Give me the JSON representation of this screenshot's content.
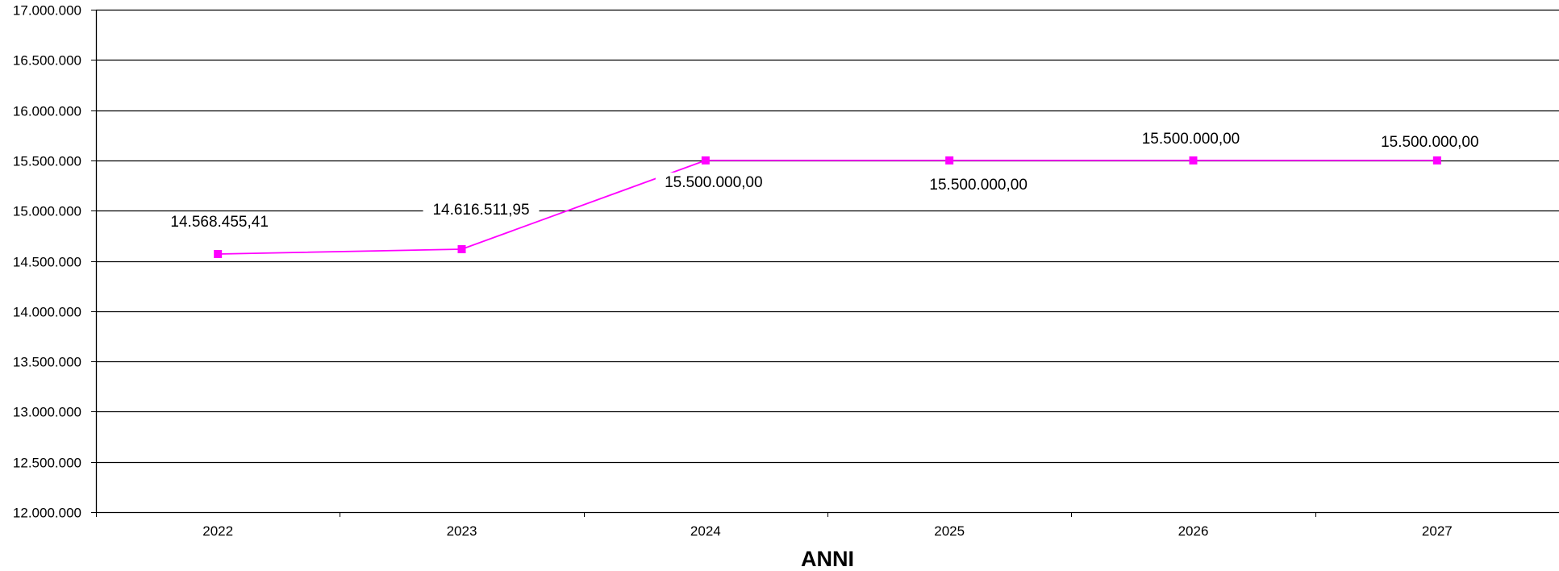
{
  "chart_data": {
    "type": "line",
    "title": "",
    "xlabel": "ANNI",
    "ylabel": "",
    "categories": [
      "2022",
      "2023",
      "2024",
      "2025",
      "2026",
      "2027"
    ],
    "series": [
      {
        "values": [
          14568455.41,
          14616511.95,
          15500000.0,
          15500000.0,
          15500000.0,
          15500000.0
        ],
        "labels": [
          "14.568.455,41",
          "14.616.511,95",
          "15.500.000,00",
          "15.500.000,00",
          "15.500.000,00",
          "15.500.000,00"
        ],
        "color": "#ff00ff"
      }
    ],
    "ylim": [
      12000000,
      17000000
    ],
    "yticks": [
      12000000,
      12500000,
      13000000,
      13500000,
      14000000,
      14500000,
      15000000,
      15500000,
      16000000,
      16500000,
      17000000
    ],
    "ytick_labels": [
      "12.000.000",
      "12.500.000",
      "13.000.000",
      "13.500.000",
      "14.000.000",
      "14.500.000",
      "15.000.000",
      "15.500.000",
      "16.000.000",
      "16.500.000",
      "17.000.000"
    ],
    "grid": true,
    "legend": "none"
  }
}
